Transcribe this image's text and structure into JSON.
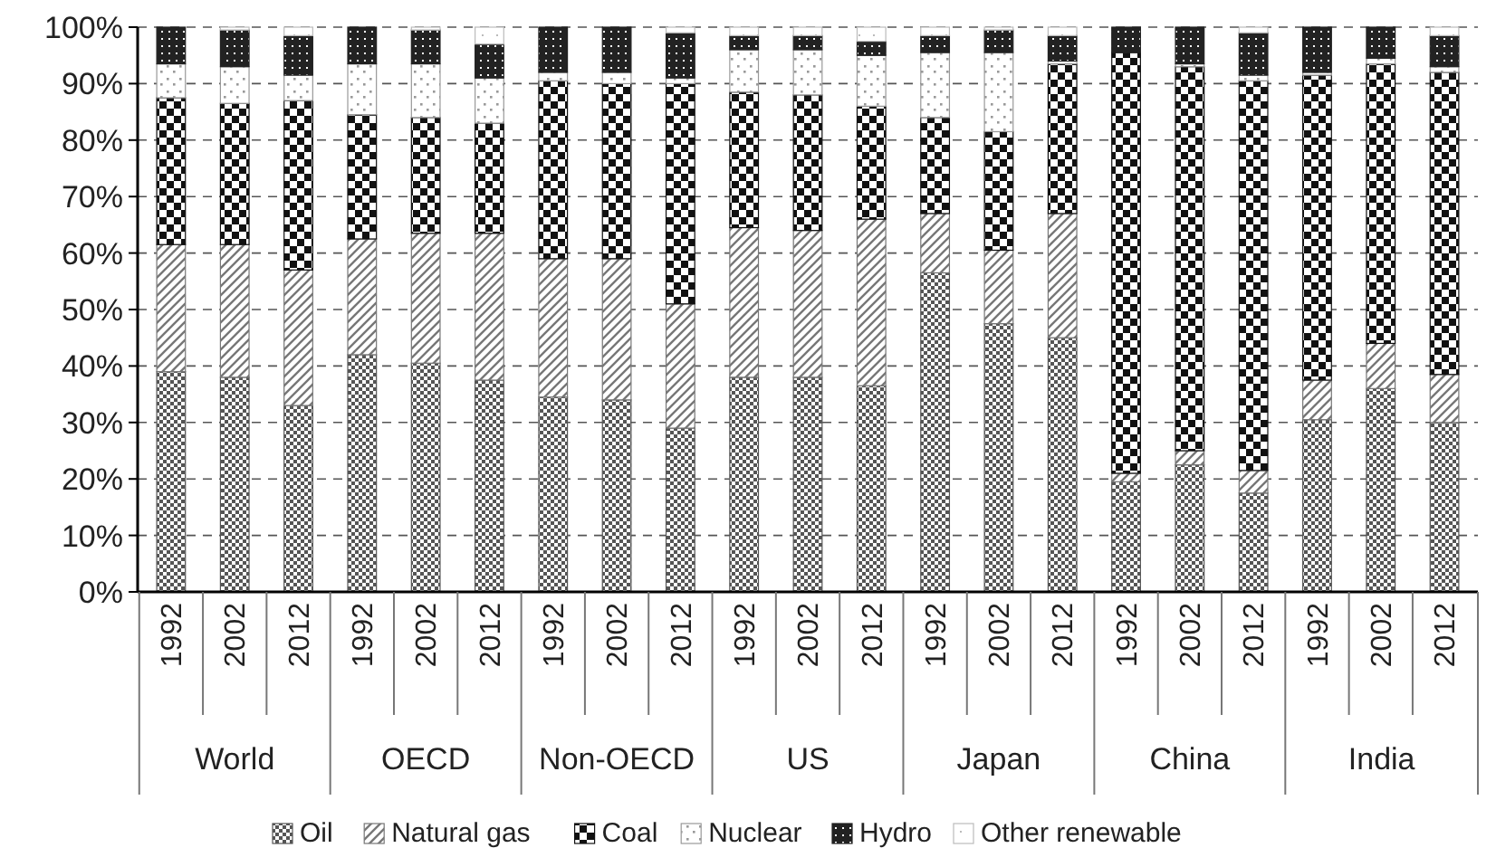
{
  "chart_data": {
    "type": "bar",
    "stacked": true,
    "categories": [
      "1992",
      "2002",
      "2012",
      "1992",
      "2002",
      "2012",
      "1992",
      "2002",
      "2012",
      "1992",
      "2002",
      "2012",
      "1992",
      "2002",
      "2012",
      "1992",
      "2002",
      "2012",
      "1992",
      "2002",
      "2012"
    ],
    "annotations": [
      "World",
      "OECD",
      "Non-OECD",
      "US",
      "Japan",
      "China",
      "India"
    ],
    "series": [
      {
        "name": "Oil",
        "color": "#555555",
        "values": [
          39,
          38,
          33,
          42,
          40.5,
          37.5,
          34.5,
          34,
          29,
          38,
          38,
          36.5,
          56.5,
          47.5,
          45,
          19.5,
          22.5,
          17.5,
          30.5,
          36,
          30
        ]
      },
      {
        "name": "Natural gas",
        "color": "#777777",
        "values": [
          22.5,
          23.5,
          24,
          20.5,
          23,
          26,
          24.5,
          25,
          22,
          26.5,
          26,
          29.5,
          10.5,
          13,
          22,
          1.5,
          2.5,
          4,
          7,
          8,
          8.5
        ]
      },
      {
        "name": "Coal",
        "color": "#111111",
        "values": [
          26,
          25,
          30,
          22,
          20.5,
          19.5,
          31.5,
          31,
          39,
          24,
          24,
          20,
          17,
          21,
          26.5,
          74.5,
          68,
          69,
          54,
          49.5,
          53.5
        ]
      },
      {
        "name": "Nuclear",
        "color": "#999999",
        "values": [
          6,
          6.5,
          4.5,
          9,
          9.5,
          8,
          1.5,
          2,
          1,
          7.5,
          8,
          9,
          11.5,
          14,
          0.5,
          0,
          0.5,
          1,
          0.5,
          1,
          1
        ]
      },
      {
        "name": "Hydro",
        "color": "#222222",
        "values": [
          6.5,
          6.5,
          7,
          6.5,
          6,
          6,
          8,
          8,
          8,
          2.5,
          2.5,
          2.5,
          3,
          4,
          4.5,
          4.5,
          6.5,
          7.5,
          8,
          5.5,
          5.5
        ]
      },
      {
        "name": "Other renewable",
        "color": "#bbbbbb",
        "values": [
          0,
          0.5,
          1.5,
          0,
          0.5,
          3,
          0,
          0,
          1,
          1.5,
          1.5,
          2.5,
          1.5,
          0.5,
          1.5,
          0,
          0,
          1,
          0,
          0,
          1.5
        ]
      }
    ],
    "ylim": [
      0,
      100
    ],
    "yticks": [
      {
        "value": 0,
        "label": "0%"
      },
      {
        "value": 10,
        "label": "10%"
      },
      {
        "value": 20,
        "label": "20%"
      },
      {
        "value": 30,
        "label": "30%"
      },
      {
        "value": 40,
        "label": "40%"
      },
      {
        "value": 50,
        "label": "50%"
      },
      {
        "value": 60,
        "label": "60%"
      },
      {
        "value": 70,
        "label": "70%"
      },
      {
        "value": 80,
        "label": "80%"
      },
      {
        "value": 90,
        "label": "90%"
      },
      {
        "value": 100,
        "label": "100%"
      }
    ],
    "grid": "y",
    "legend": "bottom"
  }
}
